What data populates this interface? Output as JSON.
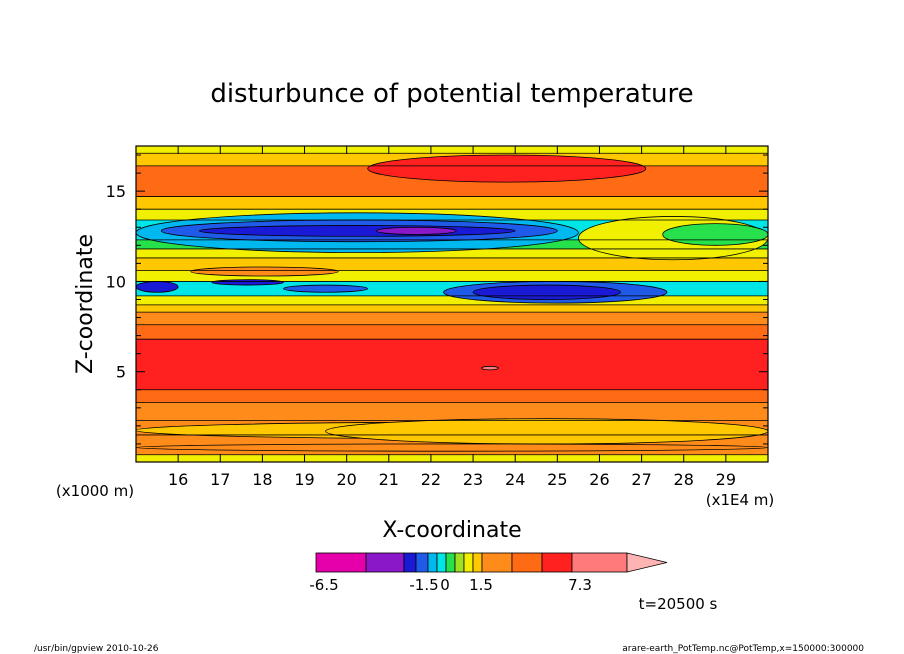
{
  "chart_data": {
    "type": "heatmap",
    "title": "disturbunce of potential temperature",
    "xlabel": "X-coordinate",
    "ylabel": "Z-coordinate",
    "x_ticks": [
      "16",
      "17",
      "18",
      "19",
      "20",
      "21",
      "22",
      "23",
      "24",
      "25",
      "26",
      "27",
      "28",
      "29"
    ],
    "x_tick_values": [
      16,
      17,
      18,
      19,
      20,
      21,
      22,
      23,
      24,
      25,
      26,
      27,
      28,
      29
    ],
    "y_ticks": [
      "5",
      "10",
      "15"
    ],
    "y_tick_values": [
      5,
      10,
      15
    ],
    "xlim": [
      15,
      30
    ],
    "ylim": [
      0,
      17.5
    ],
    "x_unit_left": "(x1000 m)",
    "x_unit_right": "(x1E4 m)",
    "time_label": "t=20500 s",
    "colorbar": {
      "colors": [
        "#e600ac",
        "#8a18c8",
        "#1a1ad6",
        "#1f5ae8",
        "#00b8f0",
        "#00e6e6",
        "#26e04c",
        "#a0e020",
        "#f0f000",
        "#ffc800",
        "#ff8c1a",
        "#ff6a14",
        "#ff2020",
        "#ff7a7a",
        "#ffb4b4"
      ],
      "labels": [
        "-6.5",
        "-1.5",
        "0",
        "1.5",
        "7.3"
      ],
      "label_values": [
        -6.5,
        -1.5,
        0,
        1.5,
        7.3
      ]
    },
    "bands": [
      {
        "z": [
          0.0,
          0.4
        ],
        "value": 0.5,
        "color": "#f0f000"
      },
      {
        "z": [
          0.4,
          1.5
        ],
        "value": 1.8,
        "color": "#ff8c1a"
      },
      {
        "z": [
          1.5,
          2.3
        ],
        "value": 1.5,
        "color": "#ff8c1a"
      },
      {
        "z": [
          2.3,
          3.3
        ],
        "value": 2.2,
        "color": "#ff8c1a"
      },
      {
        "z": [
          3.3,
          4.0
        ],
        "value": 3.0,
        "color": "#ff6a14"
      },
      {
        "z": [
          4.0,
          6.8
        ],
        "value": 4.2,
        "color": "#ff2020"
      },
      {
        "z": [
          6.8,
          7.6
        ],
        "value": 2.5,
        "color": "#ff6a14"
      },
      {
        "z": [
          7.6,
          8.3
        ],
        "value": 1.5,
        "color": "#ff8c1a"
      },
      {
        "z": [
          8.3,
          8.7
        ],
        "value": 0.8,
        "color": "#ffc800"
      },
      {
        "z": [
          8.7,
          9.2
        ],
        "value": 0.3,
        "color": "#f0f000"
      },
      {
        "z": [
          9.2,
          10.0
        ],
        "value": -0.8,
        "color": "#00e6e6"
      },
      {
        "z": [
          10.0,
          10.6
        ],
        "value": 0.4,
        "color": "#f0f000"
      },
      {
        "z": [
          10.6,
          11.3
        ],
        "value": 0.8,
        "color": "#ffc800"
      },
      {
        "z": [
          11.3,
          11.8
        ],
        "value": 0.4,
        "color": "#f0f000"
      },
      {
        "z": [
          11.8,
          12.3
        ],
        "value": -0.2,
        "color": "#26e04c"
      },
      {
        "z": [
          12.3,
          13.4
        ],
        "value": -0.5,
        "color": "#00e6e6"
      },
      {
        "z": [
          13.4,
          14.0
        ],
        "value": 0.2,
        "color": "#f0f000"
      },
      {
        "z": [
          14.0,
          14.7
        ],
        "value": 1.0,
        "color": "#ffc800"
      },
      {
        "z": [
          14.7,
          16.4
        ],
        "value": 2.0,
        "color": "#ff6a14"
      },
      {
        "z": [
          16.4,
          17.1
        ],
        "value": 0.8,
        "color": "#ffc800"
      },
      {
        "z": [
          17.1,
          17.5
        ],
        "value": 0.3,
        "color": "#f0f000"
      }
    ],
    "cells": [
      {
        "x": [
          20.5,
          27.1
        ],
        "z": [
          15.5,
          17.0
        ],
        "value": 3.6,
        "color": "#ff2020"
      },
      {
        "x": [
          15.0,
          25.5
        ],
        "z": [
          11.6,
          13.8
        ],
        "value": -1.0,
        "color": "#00b8f0"
      },
      {
        "x": [
          15.6,
          25.0
        ],
        "z": [
          12.2,
          13.4
        ],
        "value": -2.0,
        "color": "#1f5ae8"
      },
      {
        "x": [
          16.5,
          24.0
        ],
        "z": [
          12.5,
          13.1
        ],
        "value": -3.0,
        "color": "#1a1ad6"
      },
      {
        "x": [
          20.7,
          22.6
        ],
        "z": [
          12.6,
          13.0
        ],
        "value": -5.0,
        "color": "#8a18c8"
      },
      {
        "x": [
          25.5,
          30.0
        ],
        "z": [
          11.2,
          13.6
        ],
        "value": 0.2,
        "color": "#f0f000"
      },
      {
        "x": [
          27.5,
          30.0
        ],
        "z": [
          12.0,
          13.2
        ],
        "value": -0.2,
        "color": "#26e04c"
      },
      {
        "x": [
          15.0,
          16.0
        ],
        "z": [
          9.4,
          10.0
        ],
        "value": -2.0,
        "color": "#1a1ad6"
      },
      {
        "x": [
          16.8,
          18.5
        ],
        "z": [
          9.8,
          10.1
        ],
        "value": -3.0,
        "color": "#1a1ad6"
      },
      {
        "x": [
          16.3,
          19.8
        ],
        "z": [
          10.3,
          10.8
        ],
        "value": 1.8,
        "color": "#ff8c1a"
      },
      {
        "x": [
          18.5,
          20.5
        ],
        "z": [
          9.4,
          9.8
        ],
        "value": -1.5,
        "color": "#1f5ae8"
      },
      {
        "x": [
          22.3,
          27.6
        ],
        "z": [
          8.8,
          10.0
        ],
        "value": -1.0,
        "color": "#1f5ae8"
      },
      {
        "x": [
          23.0,
          26.5
        ],
        "z": [
          9.0,
          9.8
        ],
        "value": -2.0,
        "color": "#1a1ad6"
      },
      {
        "x": [
          15.0,
          30.0
        ],
        "z": [
          1.3,
          2.2
        ],
        "value": 1.2,
        "color": "#ffc800"
      },
      {
        "x": [
          19.5,
          30.0
        ],
        "z": [
          1.0,
          2.4
        ],
        "value": 1.0,
        "color": "#ffc800"
      },
      {
        "x": [
          15.0,
          30.0
        ],
        "z": [
          0.6,
          1.0
        ],
        "value": 2.0,
        "color": "#ff8c1a"
      },
      {
        "x": [
          23.2,
          23.6
        ],
        "z": [
          5.1,
          5.3
        ],
        "value": 6.0,
        "color": "#ff7a7a"
      }
    ]
  },
  "footer": {
    "left": "/usr/bin/gpview   2010-10-26",
    "right": "arare-earth_PotTemp.nc@PotTemp,x=150000:300000"
  }
}
